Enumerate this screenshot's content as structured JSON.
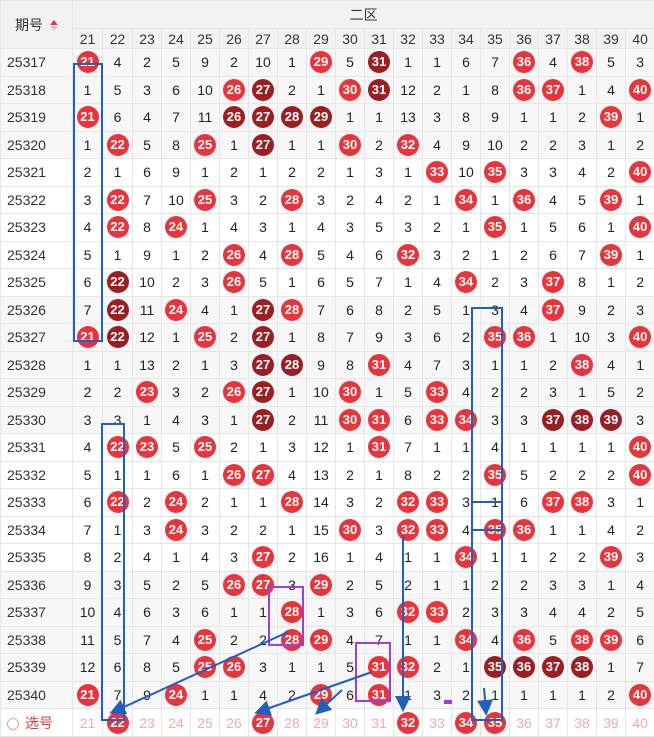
{
  "header": {
    "period_label": "期号",
    "zone_label": "二区",
    "columns": [
      "21",
      "22",
      "23",
      "24",
      "25",
      "26",
      "27",
      "28",
      "29",
      "30",
      "31",
      "32",
      "33",
      "34",
      "35",
      "36",
      "37",
      "38",
      "39",
      "40"
    ]
  },
  "rows": [
    {
      "id": "25317",
      "cells": [
        "21",
        "4",
        "2",
        "5",
        "9",
        "2",
        "10",
        "1",
        "29",
        "5",
        "31",
        "1",
        "1",
        "6",
        "7",
        "36",
        "4",
        "38",
        "5",
        "3"
      ],
      "balls": {
        "21": "r",
        "29": "r",
        "31": "d",
        "36": "r",
        "38": "r"
      }
    },
    {
      "id": "25318",
      "cells": [
        "1",
        "5",
        "3",
        "6",
        "10",
        "26",
        "27",
        "2",
        "1",
        "30",
        "31",
        "12",
        "2",
        "1",
        "8",
        "36",
        "37",
        "1",
        "4",
        "40"
      ],
      "balls": {
        "26": "r",
        "27": "d",
        "30": "r",
        "31": "d",
        "36": "r",
        "37": "r",
        "40": "r"
      }
    },
    {
      "id": "25319",
      "cells": [
        "21",
        "6",
        "4",
        "7",
        "11",
        "26",
        "27",
        "28",
        "29",
        "1",
        "1",
        "13",
        "3",
        "8",
        "9",
        "1",
        "1",
        "2",
        "39",
        "1"
      ],
      "balls": {
        "21": "r",
        "26": "d",
        "27": "d",
        "28": "d",
        "29": "d",
        "39": "r"
      }
    },
    {
      "id": "25320",
      "cells": [
        "1",
        "22",
        "5",
        "8",
        "25",
        "1",
        "27",
        "1",
        "1",
        "30",
        "2",
        "32",
        "4",
        "9",
        "10",
        "2",
        "2",
        "3",
        "1",
        "2"
      ],
      "balls": {
        "22": "r",
        "25": "r",
        "27": "d",
        "30": "r",
        "32": "r"
      }
    },
    {
      "id": "25321",
      "cells": [
        "2",
        "1",
        "6",
        "9",
        "1",
        "2",
        "1",
        "2",
        "2",
        "1",
        "3",
        "1",
        "33",
        "10",
        "35",
        "3",
        "3",
        "4",
        "2",
        "40"
      ],
      "balls": {
        "33": "r",
        "35": "r",
        "40": "r"
      }
    },
    {
      "id": "25322",
      "cells": [
        "3",
        "22",
        "7",
        "10",
        "25",
        "3",
        "2",
        "28",
        "3",
        "2",
        "4",
        "2",
        "1",
        "34",
        "1",
        "36",
        "4",
        "5",
        "39",
        "1"
      ],
      "balls": {
        "22": "r",
        "25": "r",
        "28": "r",
        "34": "r",
        "36": "r",
        "39": "r"
      }
    },
    {
      "id": "25323",
      "cells": [
        "4",
        "22",
        "8",
        "24",
        "1",
        "4",
        "3",
        "1",
        "4",
        "3",
        "5",
        "3",
        "2",
        "1",
        "35",
        "1",
        "5",
        "6",
        "1",
        "40"
      ],
      "balls": {
        "22": "r",
        "24": "r",
        "35": "r",
        "40": "r"
      }
    },
    {
      "id": "25324",
      "cells": [
        "5",
        "1",
        "9",
        "1",
        "2",
        "26",
        "4",
        "28",
        "5",
        "4",
        "6",
        "32",
        "3",
        "2",
        "1",
        "2",
        "6",
        "7",
        "39",
        "1"
      ],
      "balls": {
        "26": "r",
        "28": "r",
        "32": "r",
        "39": "r"
      }
    },
    {
      "id": "25325",
      "cells": [
        "6",
        "22",
        "10",
        "2",
        "3",
        "26",
        "5",
        "1",
        "6",
        "5",
        "7",
        "1",
        "4",
        "34",
        "2",
        "3",
        "37",
        "8",
        "1",
        "2"
      ],
      "balls": {
        "22": "d",
        "26": "r",
        "34": "r",
        "37": "r"
      }
    },
    {
      "id": "25326",
      "cells": [
        "7",
        "22",
        "11",
        "24",
        "4",
        "1",
        "27",
        "28",
        "7",
        "6",
        "8",
        "2",
        "5",
        "1",
        "3",
        "4",
        "37",
        "9",
        "2",
        "3"
      ],
      "balls": {
        "22": "d",
        "24": "r",
        "27": "d",
        "28": "r",
        "37": "r"
      }
    },
    {
      "id": "25327",
      "cells": [
        "21",
        "22",
        "12",
        "1",
        "25",
        "2",
        "27",
        "1",
        "8",
        "7",
        "9",
        "3",
        "6",
        "2",
        "35",
        "36",
        "1",
        "10",
        "3",
        "40"
      ],
      "balls": {
        "21": "r",
        "22": "d",
        "25": "r",
        "27": "d",
        "35": "r",
        "36": "r",
        "40": "r"
      }
    },
    {
      "id": "25328",
      "cells": [
        "1",
        "1",
        "13",
        "2",
        "1",
        "3",
        "27",
        "28",
        "9",
        "8",
        "31",
        "4",
        "7",
        "3",
        "1",
        "1",
        "2",
        "38",
        "4",
        "1"
      ],
      "balls": {
        "27": "d",
        "28": "d",
        "31": "r",
        "38": "r"
      }
    },
    {
      "id": "25329",
      "cells": [
        "2",
        "2",
        "23",
        "3",
        "2",
        "26",
        "27",
        "1",
        "10",
        "30",
        "1",
        "5",
        "33",
        "4",
        "2",
        "2",
        "3",
        "1",
        "5",
        "2"
      ],
      "balls": {
        "23": "r",
        "26": "r",
        "27": "d",
        "30": "r",
        "33": "r"
      }
    },
    {
      "id": "25330",
      "cells": [
        "3",
        "3",
        "1",
        "4",
        "3",
        "1",
        "27",
        "2",
        "11",
        "30",
        "31",
        "6",
        "33",
        "34",
        "3",
        "3",
        "37",
        "38",
        "39",
        "3"
      ],
      "balls": {
        "27": "d",
        "30": "r",
        "31": "r",
        "33": "r",
        "34": "r",
        "37": "d",
        "38": "d",
        "39": "d"
      }
    },
    {
      "id": "25331",
      "cells": [
        "4",
        "22",
        "23",
        "5",
        "25",
        "2",
        "1",
        "3",
        "12",
        "1",
        "31",
        "7",
        "1",
        "1",
        "4",
        "1",
        "1",
        "1",
        "1",
        "40"
      ],
      "balls": {
        "22": "r",
        "23": "r",
        "25": "r",
        "31": "r",
        "40": "r"
      }
    },
    {
      "id": "25332",
      "cells": [
        "5",
        "1",
        "1",
        "6",
        "1",
        "26",
        "27",
        "4",
        "13",
        "2",
        "1",
        "8",
        "2",
        "2",
        "35",
        "5",
        "2",
        "2",
        "2",
        "40"
      ],
      "balls": {
        "26": "r",
        "27": "r",
        "35": "r",
        "40": "r"
      }
    },
    {
      "id": "25333",
      "cells": [
        "6",
        "22",
        "2",
        "24",
        "2",
        "1",
        "1",
        "28",
        "14",
        "3",
        "2",
        "32",
        "33",
        "3",
        "1",
        "6",
        "37",
        "38",
        "3",
        "1"
      ],
      "balls": {
        "22": "r",
        "24": "r",
        "28": "r",
        "32": "r",
        "33": "r",
        "37": "r",
        "38": "r"
      }
    },
    {
      "id": "25334",
      "cells": [
        "7",
        "1",
        "3",
        "24",
        "3",
        "2",
        "2",
        "1",
        "15",
        "30",
        "3",
        "32",
        "33",
        "4",
        "35",
        "36",
        "1",
        "1",
        "4",
        "2"
      ],
      "balls": {
        "24": "r",
        "30": "r",
        "32": "r",
        "33": "r",
        "35": "r",
        "36": "r"
      }
    },
    {
      "id": "25335",
      "cells": [
        "8",
        "2",
        "4",
        "1",
        "4",
        "3",
        "27",
        "2",
        "16",
        "1",
        "4",
        "1",
        "1",
        "34",
        "1",
        "1",
        "2",
        "2",
        "39",
        "3"
      ],
      "balls": {
        "27": "r",
        "34": "r",
        "39": "r"
      }
    },
    {
      "id": "25336",
      "cells": [
        "9",
        "3",
        "5",
        "2",
        "5",
        "26",
        "27",
        "3",
        "29",
        "2",
        "5",
        "2",
        "1",
        "1",
        "2",
        "2",
        "3",
        "3",
        "1",
        "4"
      ],
      "balls": {
        "26": "r",
        "27": "r",
        "29": "r"
      }
    },
    {
      "id": "25337",
      "cells": [
        "10",
        "4",
        "6",
        "3",
        "6",
        "1",
        "1",
        "28",
        "1",
        "3",
        "6",
        "32",
        "33",
        "2",
        "3",
        "3",
        "4",
        "4",
        "2",
        "5"
      ],
      "balls": {
        "28": "r",
        "32": "r",
        "33": "r"
      }
    },
    {
      "id": "25338",
      "cells": [
        "11",
        "5",
        "7",
        "4",
        "25",
        "2",
        "2",
        "28",
        "29",
        "4",
        "7",
        "1",
        "1",
        "34",
        "4",
        "36",
        "5",
        "38",
        "39",
        "6"
      ],
      "balls": {
        "25": "r",
        "28": "r",
        "29": "r",
        "34": "r",
        "36": "r",
        "38": "r",
        "39": "r"
      }
    },
    {
      "id": "25339",
      "cells": [
        "12",
        "6",
        "8",
        "5",
        "25",
        "26",
        "3",
        "1",
        "1",
        "5",
        "31",
        "32",
        "2",
        "1",
        "35",
        "36",
        "37",
        "38",
        "1",
        "7"
      ],
      "balls": {
        "25": "r",
        "26": "r",
        "31": "r",
        "32": "r",
        "35": "d",
        "36": "d",
        "37": "d",
        "38": "d"
      }
    },
    {
      "id": "25340",
      "cells": [
        "21",
        "7",
        "9",
        "24",
        "1",
        "1",
        "4",
        "2",
        "29",
        "6",
        "31",
        "1",
        "3",
        "2",
        "1",
        "1",
        "1",
        "1",
        "2",
        "40"
      ],
      "balls": {
        "21": "r",
        "24": "r",
        "29": "r",
        "31": "r",
        "40": "r"
      }
    }
  ],
  "select_row": {
    "label": "选号",
    "cells": [
      "21",
      "22",
      "23",
      "24",
      "25",
      "26",
      "27",
      "28",
      "29",
      "30",
      "31",
      "32",
      "33",
      "34",
      "35",
      "36",
      "37",
      "38",
      "39",
      "40"
    ],
    "selected": [
      "22",
      "27",
      "32",
      "34",
      "35"
    ]
  },
  "colors": {
    "ball_red": "#e8343a",
    "ball_dark": "#9b1e22",
    "annotation_blue": "#1f5fbf",
    "annotation_purple": "#9b3fd6"
  }
}
